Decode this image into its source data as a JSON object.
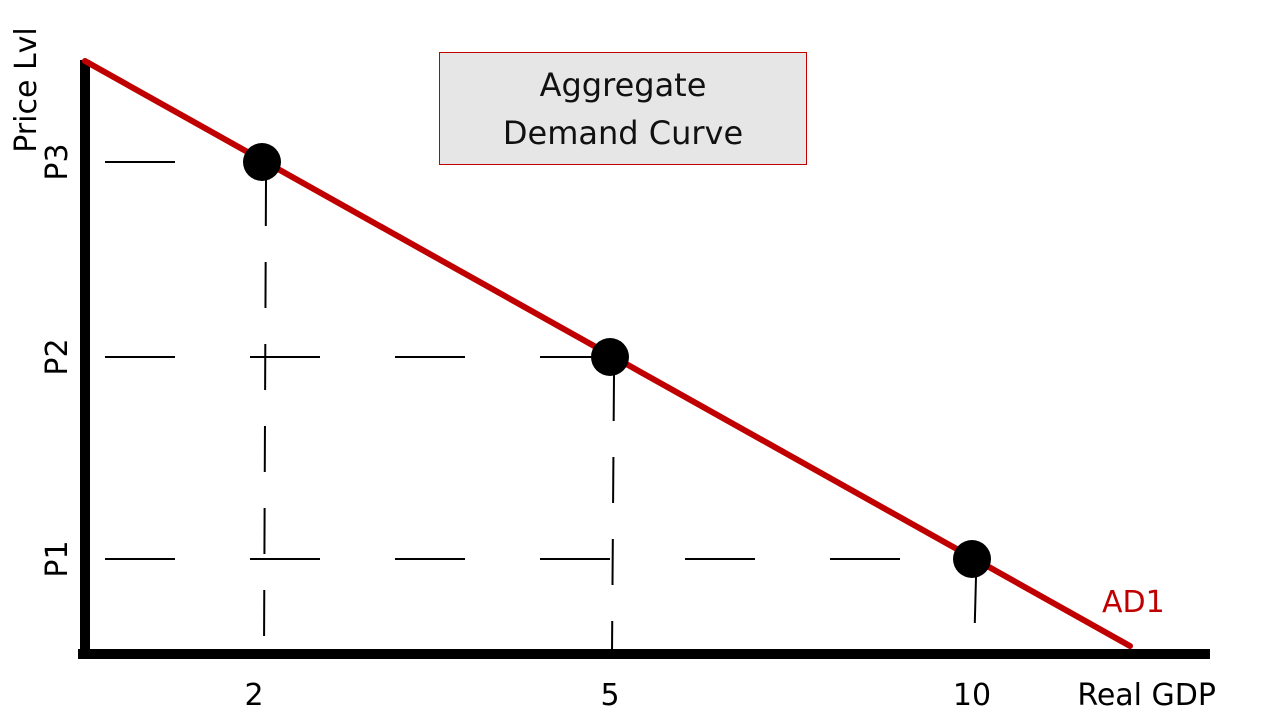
{
  "chart_data": {
    "type": "line",
    "title": [
      "Aggregate",
      "Demand Curve"
    ],
    "xlabel": "Real GDP",
    "ylabel": "Price Lvl",
    "x_ticks": [
      "2",
      "5",
      "10"
    ],
    "y_ticks": [
      "P1",
      "P2",
      "P3"
    ],
    "series": [
      {
        "name": "AD1",
        "color": "#c00000",
        "points": [
          {
            "x": "2",
            "y": "P3"
          },
          {
            "x": "5",
            "y": "P2"
          },
          {
            "x": "10",
            "y": "P1"
          }
        ]
      }
    ],
    "guides": "dashed",
    "grid": false,
    "legend": "none"
  }
}
